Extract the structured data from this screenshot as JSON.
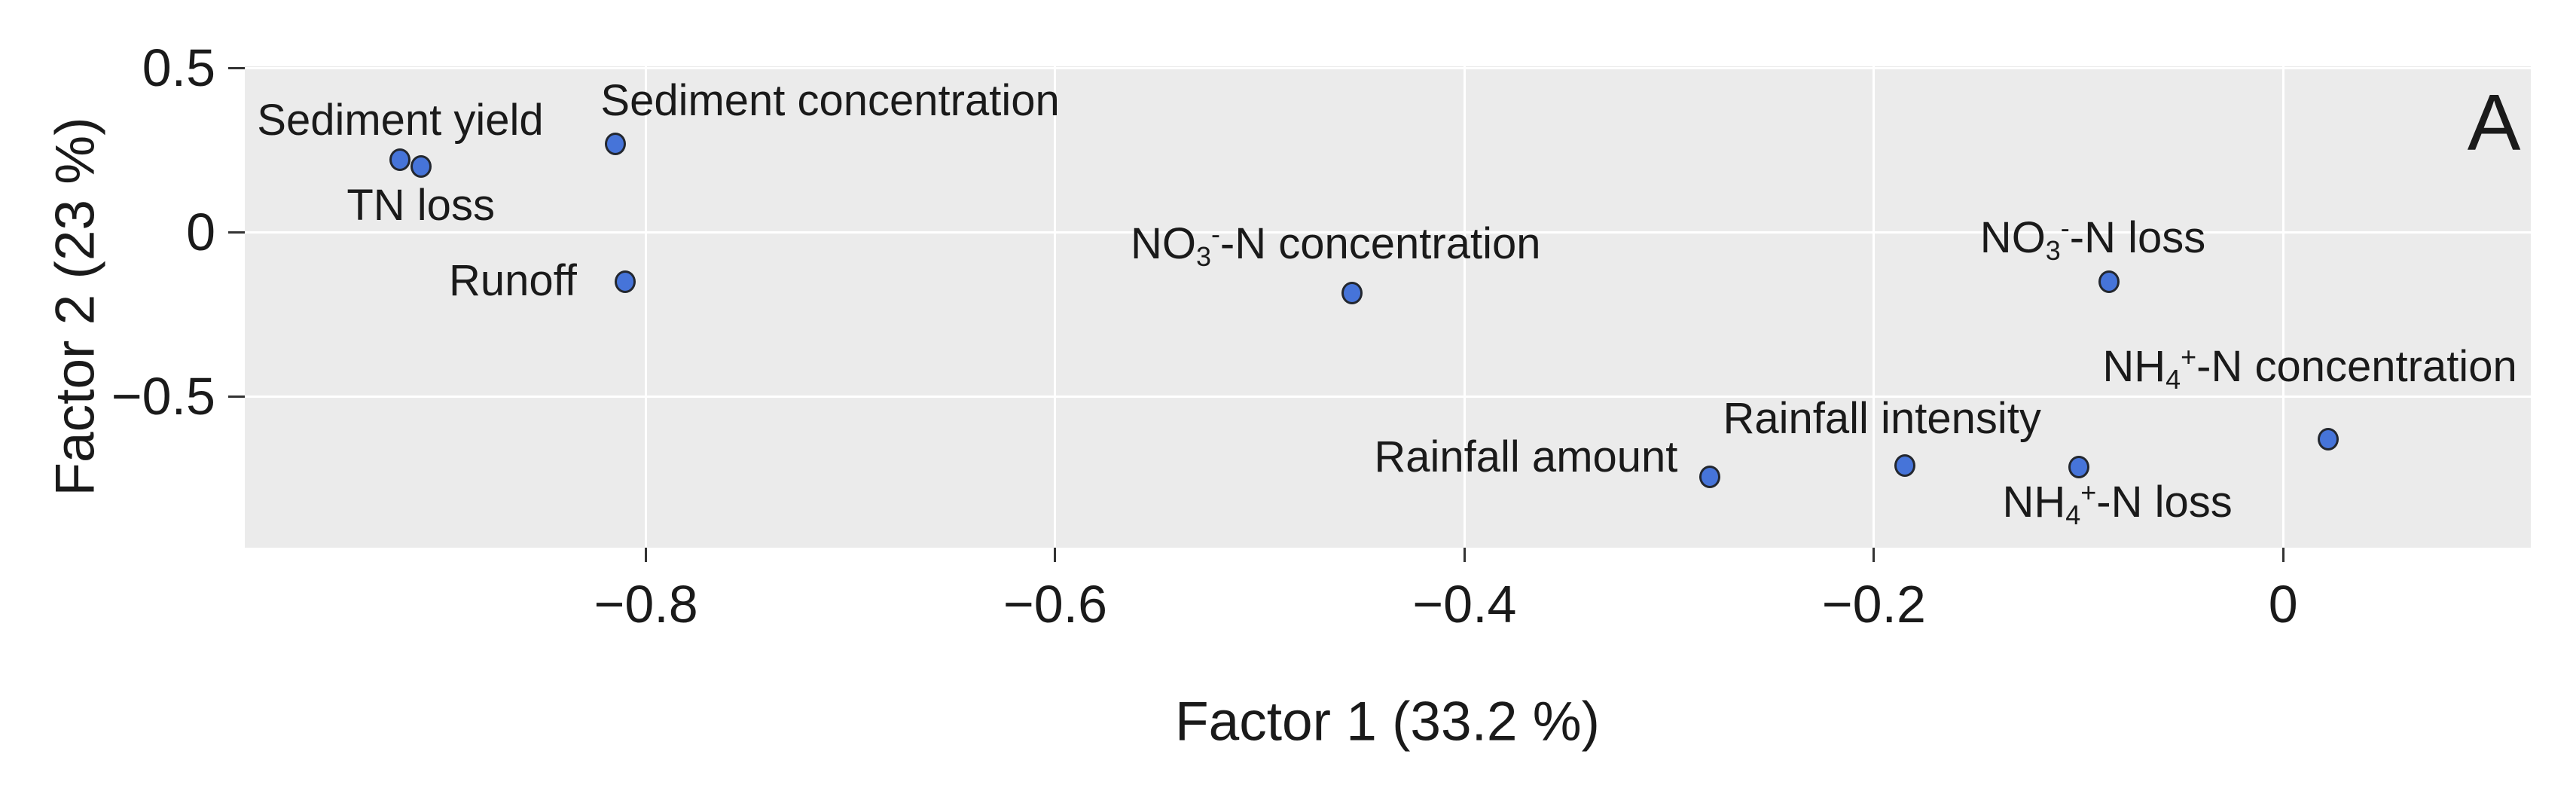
{
  "figure": {
    "background_color": "#ffffff",
    "panel_color": "#ebebeb",
    "grid_color": "#ffffff",
    "tick_color": "#333333",
    "text_color": "#1a1a1a",
    "point_fill_color": "#4674d9",
    "point_edge_color": "#23272f"
  },
  "chart_data": {
    "type": "scatter",
    "title": "",
    "xlabel": "Factor 1 (33.2 %)",
    "ylabel": "Factor 2 (23 %)",
    "panel_annotation": {
      "text": "A",
      "x": 0.103,
      "y": 0.333
    },
    "xlim": [
      -0.996,
      0.121
    ],
    "ylim": [
      -0.96,
      0.505
    ],
    "grid": "major gridlines, white on gray panel",
    "legend": false,
    "xticks": [
      {
        "v": -0.8,
        "label": "−0.8"
      },
      {
        "v": -0.6,
        "label": "−0.6"
      },
      {
        "v": -0.4,
        "label": "−0.4"
      },
      {
        "v": -0.2,
        "label": "−0.2"
      },
      {
        "v": 0,
        "label": "0"
      }
    ],
    "yticks": [
      {
        "v": 0.5,
        "label": "0.5"
      },
      {
        "v": 0,
        "label": "0"
      },
      {
        "v": -0.5,
        "label": "−0.5"
      }
    ],
    "points": [
      {
        "name": "Sediment yield",
        "x": -0.92,
        "y": 0.22,
        "label": {
          "x": -0.92,
          "y": 0.34,
          "segments": [
            {
              "t": "Sediment yield"
            }
          ]
        }
      },
      {
        "name": "TN loss",
        "x": -0.91,
        "y": 0.2,
        "label": {
          "x": -0.91,
          "y": 0.08,
          "segments": [
            {
              "t": "TN loss"
            }
          ]
        }
      },
      {
        "name": "Sediment concentration",
        "x": -0.815,
        "y": 0.27,
        "label": {
          "x": -0.71,
          "y": 0.4,
          "segments": [
            {
              "t": "Sediment concentration"
            }
          ]
        }
      },
      {
        "name": "Runoff",
        "x": -0.81,
        "y": -0.15,
        "label": {
          "x": -0.865,
          "y": -0.149,
          "segments": [
            {
              "t": "Runoff"
            }
          ]
        }
      },
      {
        "name": "NO3-N concentration",
        "x": -0.455,
        "y": -0.185,
        "label": {
          "x": -0.463,
          "y": -0.04,
          "segments": [
            {
              "t": "NO"
            },
            {
              "t": "3",
              "s": "sub"
            },
            {
              "t": "-",
              "s": "sup"
            },
            {
              "t": "-N concentration"
            }
          ]
        }
      },
      {
        "name": "NO3-N loss",
        "x": -0.085,
        "y": -0.15,
        "label": {
          "x": -0.093,
          "y": -0.022,
          "segments": [
            {
              "t": "NO"
            },
            {
              "t": "3",
              "s": "sub"
            },
            {
              "t": "-",
              "s": "sup"
            },
            {
              "t": "-N loss"
            }
          ]
        }
      },
      {
        "name": "Rainfall amount",
        "x": -0.28,
        "y": -0.745,
        "label": {
          "x": -0.37,
          "y": -0.685,
          "segments": [
            {
              "t": "Rainfall amount"
            }
          ]
        }
      },
      {
        "name": "Rainfall intensity",
        "x": -0.185,
        "y": -0.71,
        "label": {
          "x": -0.196,
          "y": -0.567,
          "segments": [
            {
              "t": "Rainfall intensity"
            }
          ]
        }
      },
      {
        "name": "NH4-N loss",
        "x": -0.1,
        "y": -0.715,
        "label": {
          "x": -0.081,
          "y": -0.828,
          "segments": [
            {
              "t": "NH"
            },
            {
              "t": "4",
              "s": "sub"
            },
            {
              "t": "+",
              "s": "sup"
            },
            {
              "t": "-N loss"
            }
          ]
        }
      },
      {
        "name": "NH4-N concentration",
        "x": 0.022,
        "y": -0.63,
        "label": {
          "x": 0.013,
          "y": -0.414,
          "segments": [
            {
              "t": "NH"
            },
            {
              "t": "4",
              "s": "sub"
            },
            {
              "t": "+",
              "s": "sup"
            },
            {
              "t": "-N concentration"
            }
          ]
        }
      }
    ]
  }
}
